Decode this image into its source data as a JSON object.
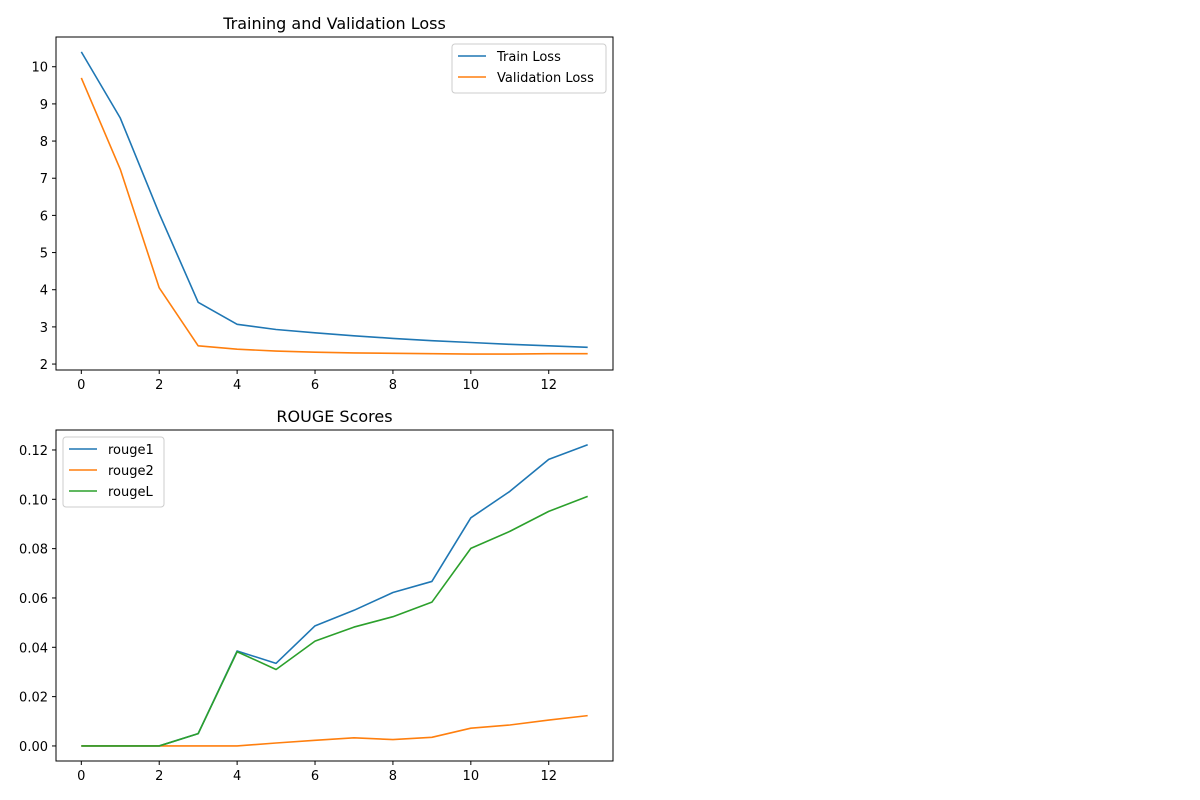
{
  "chart_data": [
    {
      "type": "line",
      "title": "Training and Validation Loss",
      "xlabel": "",
      "ylabel": "",
      "xlim": [
        -0.65,
        13.65
      ],
      "ylim": [
        1.84,
        10.8
      ],
      "xticks": [
        0,
        2,
        4,
        6,
        8,
        10,
        12
      ],
      "yticks": [
        2,
        3,
        4,
        5,
        6,
        7,
        8,
        9,
        10
      ],
      "ytick_decimals": 0,
      "grid": false,
      "legend_position": "top-right",
      "x": [
        0,
        1,
        2,
        3,
        4,
        5,
        6,
        7,
        8,
        9,
        10,
        11,
        12,
        13
      ],
      "series": [
        {
          "name": "Train Loss",
          "color": "#1f77b4",
          "values": [
            10.4,
            8.62,
            6.05,
            3.66,
            3.07,
            2.93,
            2.84,
            2.76,
            2.69,
            2.63,
            2.58,
            2.53,
            2.49,
            2.45
          ]
        },
        {
          "name": "Validation Loss",
          "color": "#ff7f0e",
          "values": [
            9.7,
            7.24,
            4.05,
            2.49,
            2.4,
            2.35,
            2.32,
            2.3,
            2.29,
            2.28,
            2.27,
            2.27,
            2.28,
            2.28
          ]
        }
      ]
    },
    {
      "type": "line",
      "title": "ROUGE Scores",
      "xlabel": "",
      "ylabel": "",
      "xlim": [
        -0.65,
        13.65
      ],
      "ylim": [
        -0.0061,
        0.1281
      ],
      "xticks": [
        0,
        2,
        4,
        6,
        8,
        10,
        12
      ],
      "yticks": [
        0.0,
        0.02,
        0.04,
        0.06,
        0.08,
        0.1,
        0.12
      ],
      "ytick_decimals": 2,
      "grid": false,
      "legend_position": "top-left",
      "x": [
        0,
        1,
        2,
        3,
        4,
        5,
        6,
        7,
        8,
        9,
        10,
        11,
        12,
        13
      ],
      "series": [
        {
          "name": "rouge1",
          "color": "#1f77b4",
          "values": [
            0.0,
            0.0,
            0.0,
            0.005,
            0.0385,
            0.0335,
            0.0487,
            0.055,
            0.0622,
            0.0667,
            0.0925,
            0.1032,
            0.1162,
            0.1221
          ]
        },
        {
          "name": "rouge2",
          "color": "#ff7f0e",
          "values": [
            0.0,
            0.0,
            0.0,
            0.0,
            0.0,
            0.0012,
            0.0023,
            0.0033,
            0.0026,
            0.0035,
            0.0072,
            0.0085,
            0.0105,
            0.0123
          ]
        },
        {
          "name": "rougeL",
          "color": "#2ca02c",
          "values": [
            0.0,
            0.0,
            0.0,
            0.005,
            0.0382,
            0.031,
            0.0425,
            0.0482,
            0.0524,
            0.0583,
            0.0801,
            0.087,
            0.0951,
            0.1012
          ]
        }
      ]
    }
  ]
}
